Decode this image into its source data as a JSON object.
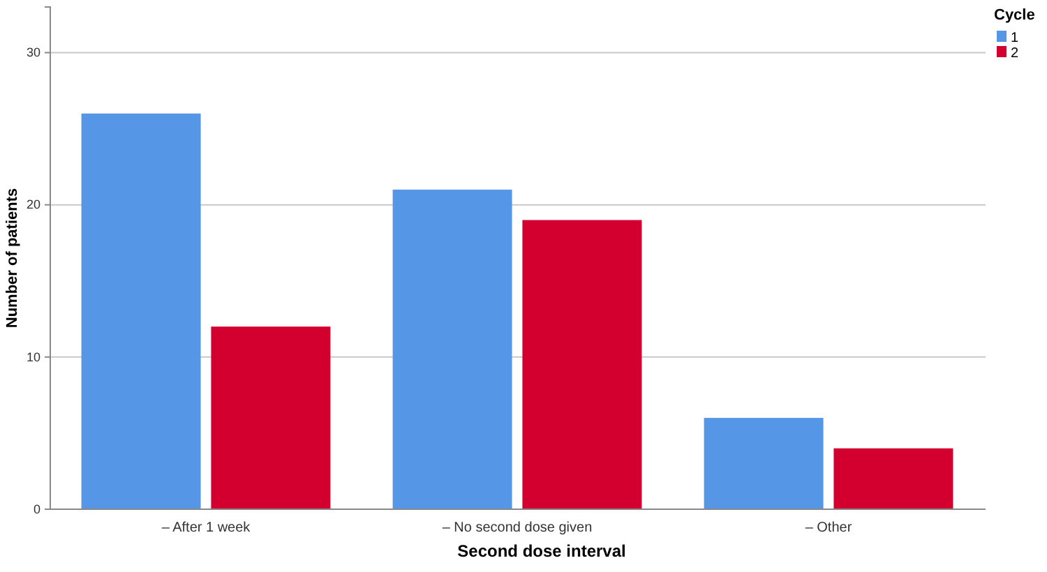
{
  "chart_data": {
    "type": "bar",
    "xlabel": "Second dose interval",
    "ylabel": "Number of patients",
    "legend_title": "Cycle",
    "categories": [
      "– After 1 week",
      "– No second dose given",
      "– Other"
    ],
    "series": [
      {
        "name": "1",
        "color": "#5596e6",
        "values": [
          26,
          21,
          6
        ]
      },
      {
        "name": "2",
        "color": "#d3002f",
        "values": [
          12,
          19,
          4
        ]
      }
    ],
    "ylim": [
      0,
      33
    ],
    "yticks": [
      0,
      10,
      20,
      30
    ],
    "grid": "y",
    "legend": "top right"
  }
}
